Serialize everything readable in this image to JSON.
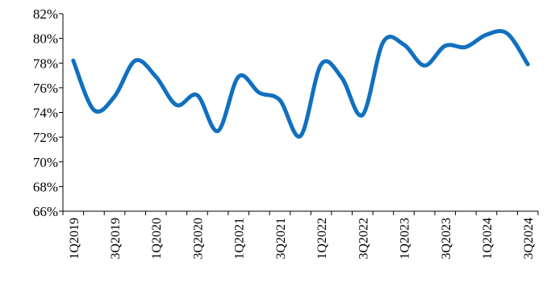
{
  "chart_data": {
    "type": "line",
    "title": "",
    "xlabel": "",
    "ylabel": "",
    "y_unit": "%",
    "ylim": [
      66,
      82
    ],
    "y_ticks": [
      66,
      68,
      70,
      72,
      74,
      76,
      78,
      80,
      82
    ],
    "y_tick_labels": [
      "66%",
      "68%",
      "70%",
      "72%",
      "74%",
      "76%",
      "78%",
      "80%",
      "82%"
    ],
    "grid": false,
    "legend": "none",
    "line_style": "smooth",
    "colors": {
      "series": "#1170bf",
      "axis": "#000000"
    },
    "categories": [
      "1Q2019",
      "2Q2019",
      "3Q2019",
      "4Q2019",
      "1Q2020",
      "2Q2020",
      "3Q2020",
      "4Q2020",
      "1Q2021",
      "2Q2021",
      "3Q2021",
      "4Q2021",
      "1Q2022",
      "2Q2022",
      "3Q2022",
      "4Q2022",
      "1Q2023",
      "2Q2023",
      "3Q2023",
      "4Q2023",
      "1Q2024",
      "2Q2024",
      "3Q2024"
    ],
    "x_tick_labels_shown": [
      "1Q2019",
      "3Q2019",
      "1Q2020",
      "3Q2020",
      "1Q2021",
      "3Q2021",
      "1Q2022",
      "3Q2022",
      "1Q2023",
      "3Q2023",
      "1Q2024",
      "3Q2024"
    ],
    "series": [
      {
        "values": [
          78.2,
          74.2,
          75.3,
          78.2,
          76.9,
          74.6,
          75.4,
          72.5,
          76.9,
          75.6,
          75.0,
          72.1,
          77.9,
          76.8,
          73.8,
          79.7,
          79.5,
          77.8,
          79.4,
          79.3,
          80.3,
          80.4,
          77.9
        ]
      }
    ]
  }
}
